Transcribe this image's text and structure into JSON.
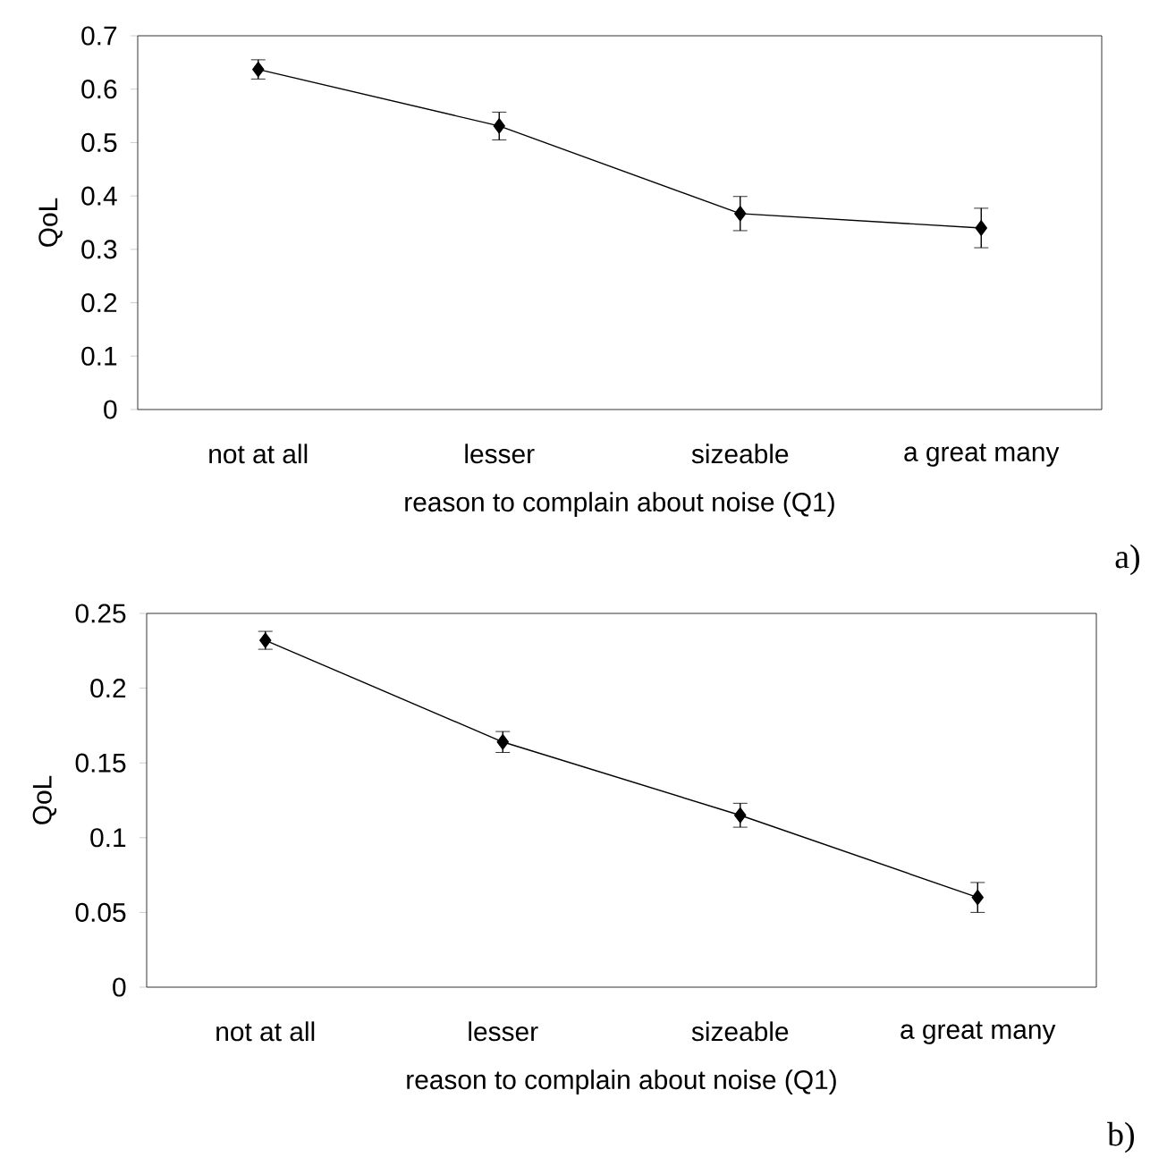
{
  "chart_data": [
    {
      "type": "line",
      "categories": [
        "not at all",
        "lesser",
        "sizeable",
        "a great many"
      ],
      "values": [
        0.637,
        0.531,
        0.367,
        0.34
      ],
      "errors": [
        0.018,
        0.026,
        0.032,
        0.037
      ],
      "color": "#000000",
      "marker": "diamond",
      "line_style": "solid",
      "ylim": [
        0,
        0.7
      ],
      "yticks": [
        0,
        0.1,
        0.2,
        0.3,
        0.4,
        0.5,
        0.6,
        0.7
      ],
      "xlabel": "reason to complain about noise (Q1)",
      "ylabel": "QoL",
      "annotations": [
        "a)"
      ]
    },
    {
      "type": "line",
      "categories": [
        "not at all",
        "lesser",
        "sizeable",
        "a great many"
      ],
      "values": [
        0.232,
        0.164,
        0.115,
        0.06
      ],
      "errors": [
        0.006,
        0.007,
        0.008,
        0.01
      ],
      "color": "#000000",
      "marker": "diamond",
      "line_style": "solid",
      "ylim": [
        0,
        0.25
      ],
      "yticks": [
        0,
        0.05,
        0.1,
        0.15,
        0.2,
        0.25
      ],
      "xlabel": "reason to complain about noise (Q1)",
      "ylabel": "QoL",
      "annotations": [
        "b)"
      ]
    }
  ]
}
